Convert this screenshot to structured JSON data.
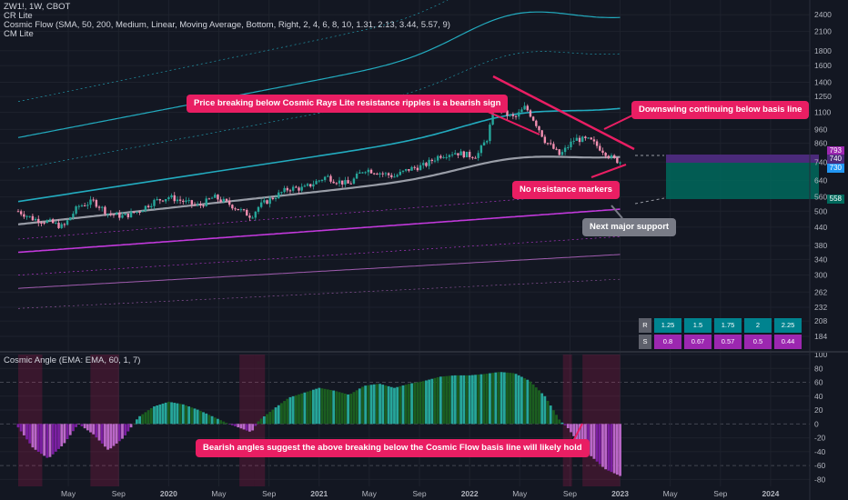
{
  "header": {
    "symbol": "ZW1!, 1W, CBOT",
    "line2": "CR Lite",
    "line3": "Cosmic Flow (SMA, 50, 200, Medium, Linear, Moving Average, Bottom, Right, 2, 4, 6, 8, 10, 1.31, 2.13, 3.44, 5.57, 9)",
    "line4": "CM Lite"
  },
  "callouts": {
    "rays": "Price breaking below Cosmic Rays Lite resistance ripples is a bearish sign",
    "downswing": "Downswing continuing below basis line",
    "no_resistance": "No resistance markers",
    "support": "Next major support",
    "bearish": "Bearish angles suggest the above breaking below the Cosmic Flow basis line will likely hold"
  },
  "subpane": {
    "title": "Cosmic Angle (EMA: EMA, 60, 1, 7)"
  },
  "price_labels": {
    "a": "793",
    "b": "740",
    "c": "730",
    "d": "558"
  },
  "table": {
    "r_label": "R",
    "s_label": "S",
    "r_values": [
      "1.25",
      "1.5",
      "1.75",
      "2",
      "2.25"
    ],
    "s_values": [
      "0.8",
      "0.67",
      "0.57",
      "0.5",
      "0.44"
    ]
  },
  "chart_data": [
    {
      "type": "candlestick",
      "title": "ZW1!, 1W, CBOT",
      "y_scale": "log",
      "y_ticks": [
        2400,
        2100,
        1800,
        1600,
        1400,
        1250,
        1100,
        960,
        860,
        740,
        640,
        560,
        500,
        440,
        380,
        340,
        300,
        262,
        232,
        208,
        184
      ],
      "x_ticks": [
        "May",
        "Sep",
        "2020",
        "May",
        "Sep",
        "2021",
        "May",
        "Sep",
        "2022",
        "May",
        "Sep",
        "2023",
        "May",
        "Sep",
        "2024"
      ],
      "x_tick_times": [
        2019.333,
        2019.667,
        2020.0,
        2020.333,
        2020.667,
        2021.0,
        2021.333,
        2021.667,
        2022.0,
        2022.333,
        2022.667,
        2023.0,
        2023.333,
        2023.667,
        2024.0
      ],
      "x_range": [
        2019.0,
        2024.2
      ],
      "ylim": [
        165,
        2700
      ],
      "price_path": [
        [
          2019.0,
          500
        ],
        [
          2019.1,
          470
        ],
        [
          2019.2,
          460
        ],
        [
          2019.3,
          440
        ],
        [
          2019.4,
          520
        ],
        [
          2019.5,
          540
        ],
        [
          2019.6,
          490
        ],
        [
          2019.7,
          480
        ],
        [
          2019.8,
          500
        ],
        [
          2019.9,
          540
        ],
        [
          2020.0,
          560
        ],
        [
          2020.1,
          540
        ],
        [
          2020.2,
          520
        ],
        [
          2020.3,
          560
        ],
        [
          2020.4,
          530
        ],
        [
          2020.5,
          495
        ],
        [
          2020.55,
          480
        ],
        [
          2020.6,
          520
        ],
        [
          2020.7,
          560
        ],
        [
          2020.8,
          600
        ],
        [
          2020.9,
          600
        ],
        [
          2021.0,
          640
        ],
        [
          2021.05,
          660
        ],
        [
          2021.1,
          640
        ],
        [
          2021.2,
          620
        ],
        [
          2021.3,
          700
        ],
        [
          2021.4,
          680
        ],
        [
          2021.5,
          660
        ],
        [
          2021.6,
          700
        ],
        [
          2021.7,
          720
        ],
        [
          2021.8,
          780
        ],
        [
          2021.9,
          800
        ],
        [
          2022.0,
          780
        ],
        [
          2022.05,
          780
        ],
        [
          2022.12,
          900
        ],
        [
          2022.18,
          1250
        ],
        [
          2022.22,
          1100
        ],
        [
          2022.3,
          1050
        ],
        [
          2022.37,
          1150
        ],
        [
          2022.42,
          1050
        ],
        [
          2022.5,
          880
        ],
        [
          2022.6,
          780
        ],
        [
          2022.7,
          890
        ],
        [
          2022.8,
          880
        ],
        [
          2022.9,
          800
        ],
        [
          2022.95,
          760
        ],
        [
          2023.0,
          742
        ]
      ],
      "annotations": [
        "No resistance markers",
        "Next major support",
        "Downswing continuing below basis line"
      ]
    },
    {
      "type": "bar",
      "title": "Cosmic Angle (EMA: EMA, 60, 1, 7)",
      "y_ticks": [
        100,
        80,
        60,
        40,
        20,
        0,
        -20,
        -40,
        -60,
        -80
      ],
      "ylim": [
        -90,
        100
      ],
      "x": [
        2019.0,
        2019.1,
        2019.2,
        2019.3,
        2019.4,
        2019.5,
        2019.6,
        2019.7,
        2019.8,
        2019.9,
        2020.0,
        2020.1,
        2020.2,
        2020.3,
        2020.4,
        2020.5,
        2020.55,
        2020.6,
        2020.7,
        2020.8,
        2020.9,
        2021.0,
        2021.1,
        2021.2,
        2021.3,
        2021.4,
        2021.5,
        2021.6,
        2021.7,
        2021.8,
        2021.9,
        2022.0,
        2022.1,
        2022.2,
        2022.3,
        2022.4,
        2022.5,
        2022.6,
        2022.65,
        2022.7,
        2022.8,
        2022.9,
        2023.0
      ],
      "values": [
        -5,
        -35,
        -50,
        -30,
        0,
        -15,
        -38,
        -20,
        10,
        25,
        32,
        28,
        20,
        10,
        0,
        -8,
        -12,
        5,
        22,
        38,
        45,
        52,
        48,
        42,
        55,
        58,
        52,
        58,
        62,
        68,
        70,
        70,
        72,
        75,
        73,
        62,
        40,
        5,
        -5,
        -20,
        -45,
        -65,
        -75
      ]
    }
  ]
}
